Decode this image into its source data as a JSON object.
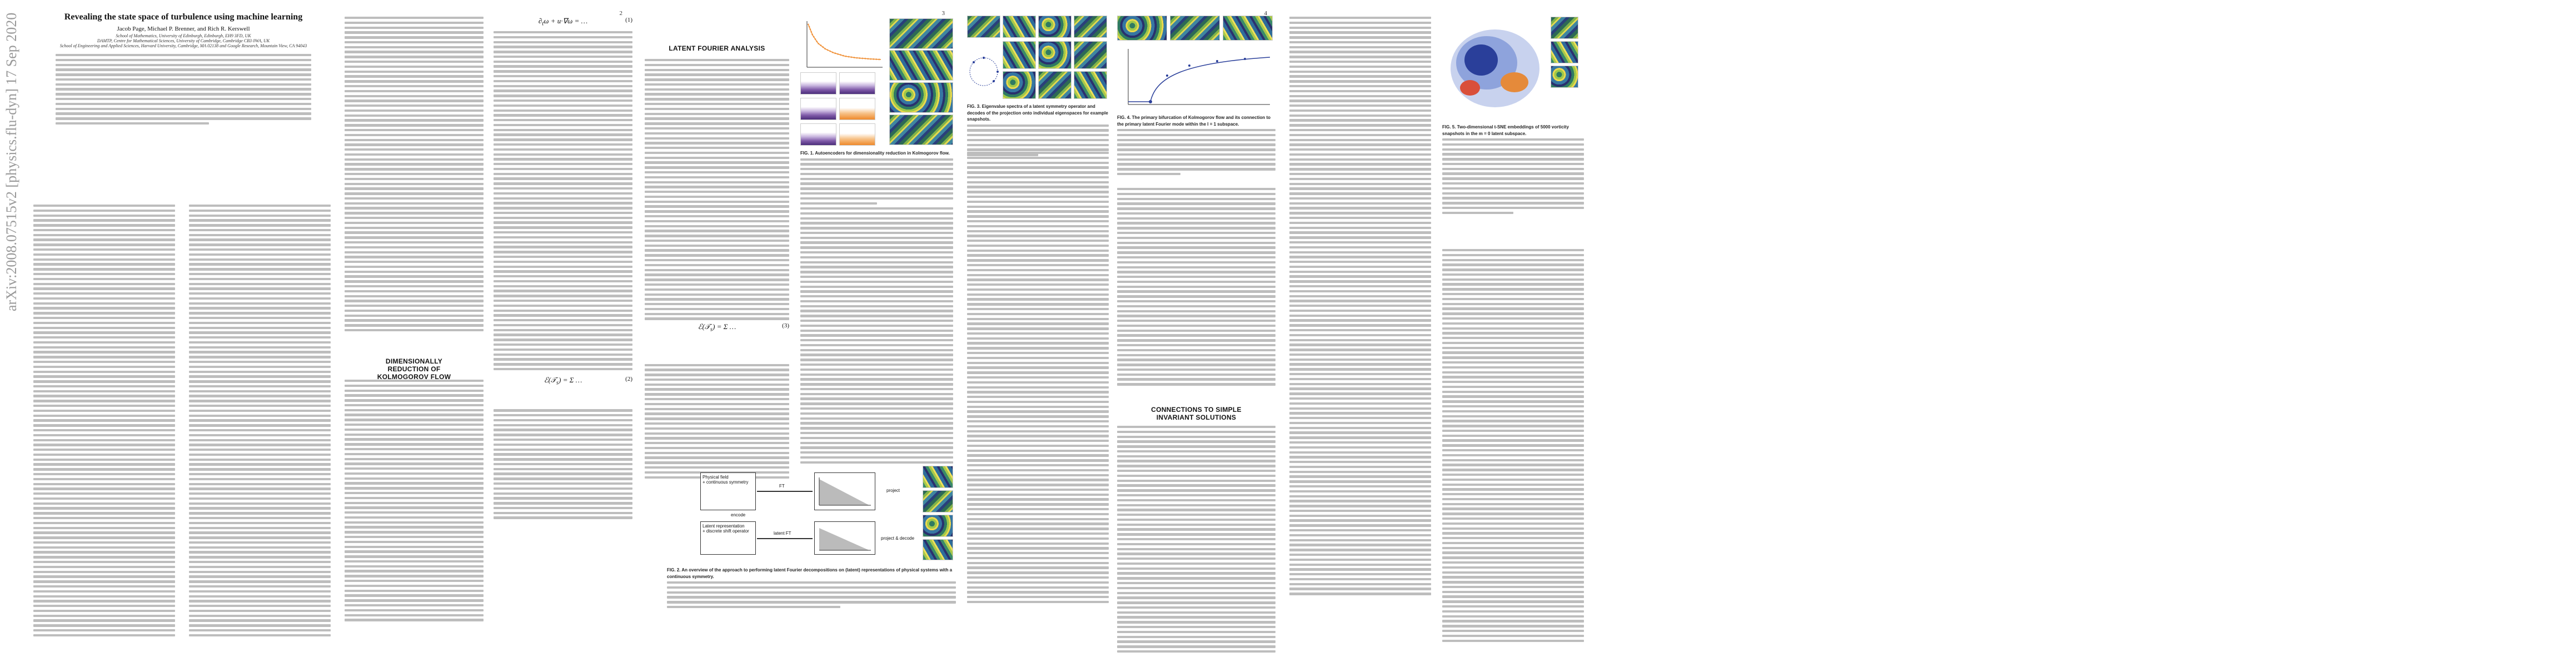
{
  "arxiv_stamp": "arXiv:2008.07515v2  [physics.flu-dyn]  17 Sep 2020",
  "pages": [
    {
      "number": "",
      "title": "Revealing the state space of turbulence using machine learning",
      "authors": "Jacob Page, Michael P. Brenner, and Rich R. Kerswell",
      "affiliations": [
        "School of Mathematics, University of Edinburgh, Edinburgh, EH9 3FD, UK",
        "DAMTP, Centre for Mathematical Sciences, University of Cambridge, Cambridge CB3 0WA, UK",
        "School of Engineering and Applied Sciences, Harvard University, Cambridge, MA 02138 and Google Research, Mountain View, CA 94043"
      ]
    },
    {
      "number": "2",
      "heading": "DIMENSIONALLY REDUCTION OF KOLMOGOROV FLOW"
    },
    {
      "number": "3",
      "heading": "LATENT FOURIER ANALYSIS",
      "fig1_caption": "FIG. 1. Autoencoders for dimensionality reduction in Kolmogorov flow.",
      "fig2_caption": "FIG. 2. An overview of the approach to performing latent Fourier decompositions on (latent) representations of physical systems with a continuous symmetry.",
      "diagram": {
        "box_physical": "Physical field",
        "box_physical_sub": "+ continuous symmetry",
        "box_latent": "Latent representation",
        "box_latent_sub": "+ discrete shift operator",
        "label_ft": "FT",
        "label_latent_ft": "latent FT",
        "label_encode": "encode",
        "label_project": "project",
        "label_decode": "project & decode"
      }
    },
    {
      "number": "4",
      "fig3_caption": "FIG. 3. Eigenvalue spectra of a latent symmetry operator and decodes of the projection onto individual eigenspaces for example snapshots.",
      "fig4_caption": "FIG. 4. The primary bifurcation of Kolmogorov flow and its connection to the primary latent Fourier mode within the l = 1 subspace.",
      "heading": "CONNECTIONS TO SIMPLE INVARIANT SOLUTIONS"
    },
    {
      "number": "5",
      "fig5_caption": "FIG. 5. Two-dimensional t-SNE embeddings of 5000 vorticity snapshots in the m = 0 latent subspace."
    }
  ],
  "colors": {
    "stamp": "#999999",
    "text_placeholder": "#bdbdbd",
    "purple": "#4b2d7a",
    "orange": "#ef8a2b",
    "scatter_blue": "#2a3f9a"
  }
}
